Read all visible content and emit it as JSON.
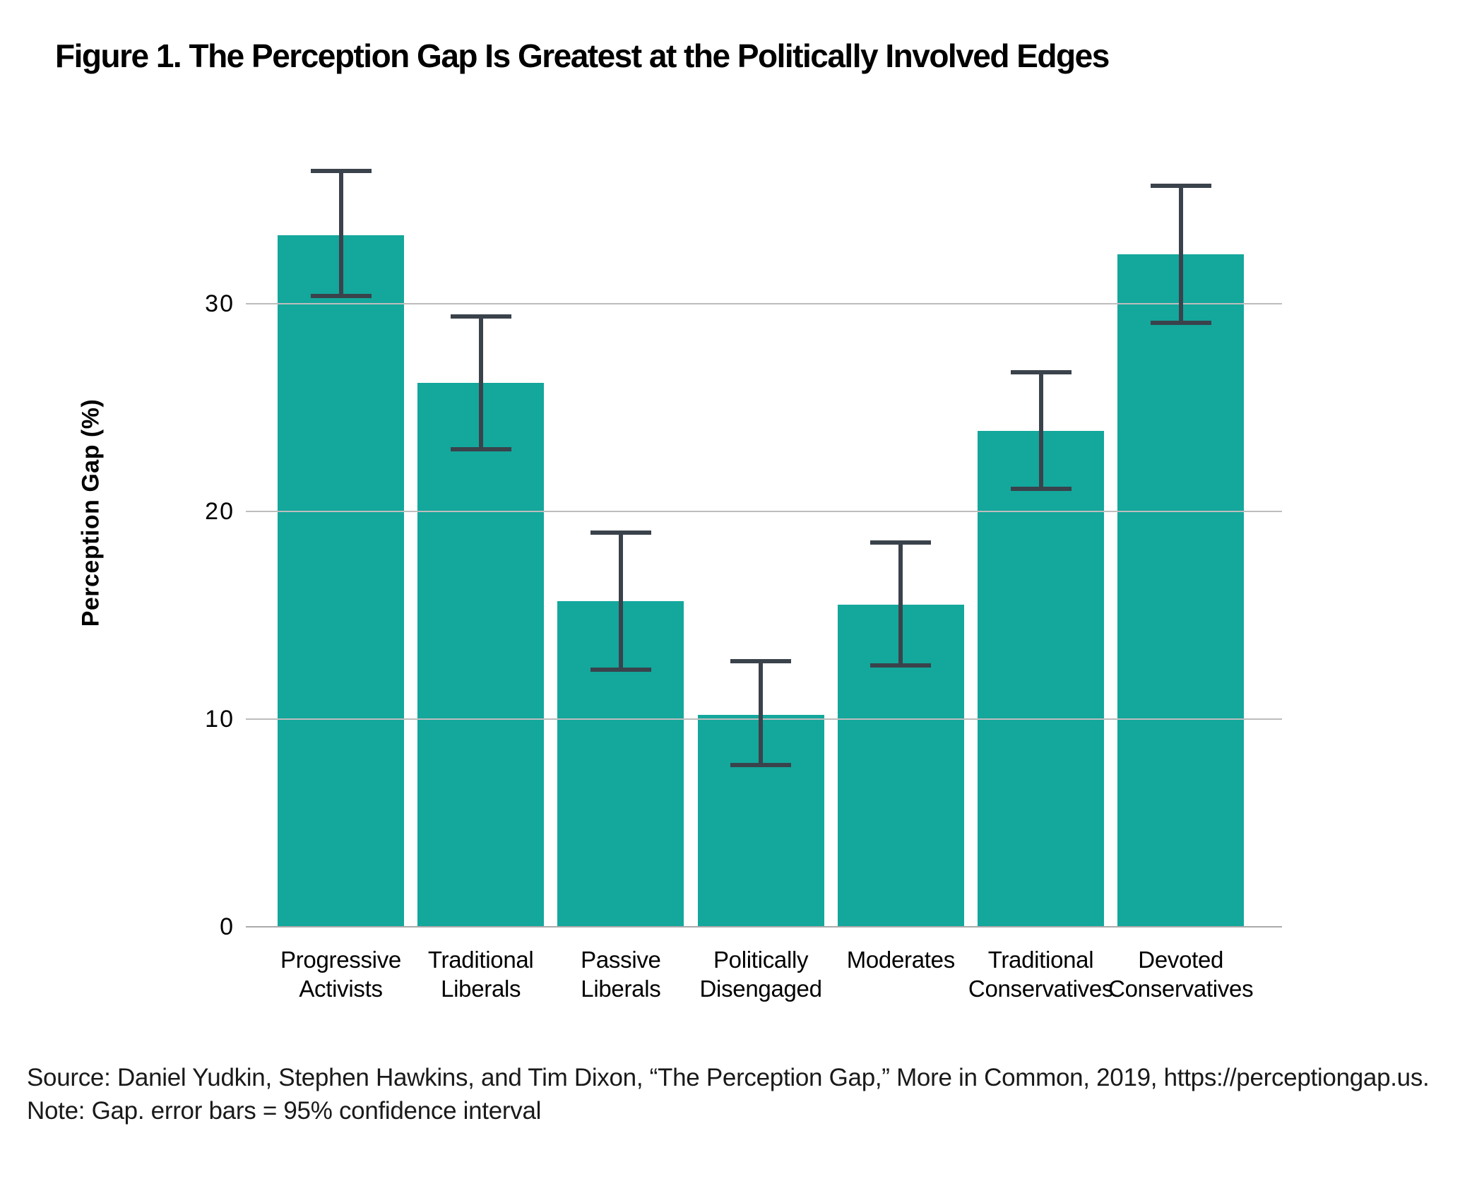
{
  "title": "Figure 1. The Perception Gap Is Greatest at the Politically Involved Edges",
  "footer": {
    "source": "Source: Daniel Yudkin, Stephen Hawkins, and Tim Dixon, “The Perception Gap,” More in Common, 2019, https://perceptiongap.us.",
    "note": "Note: Gap. error bars = 95% confidence interval"
  },
  "chart_data": {
    "type": "bar",
    "title": "Figure 1. The Perception Gap Is Greatest at the Politically Involved Edges",
    "xlabel": "",
    "ylabel": "Perception Gap (%)",
    "ylim": [
      0,
      38.5
    ],
    "yticks": [
      0,
      10,
      20,
      30
    ],
    "grid": true,
    "legend": "none",
    "categories": [
      "Progressive Activists",
      "Traditional Liberals",
      "Passive Liberals",
      "Politically Disengaged",
      "Moderates",
      "Traditional Conservatives",
      "Devoted Conservatives"
    ],
    "values": [
      33.3,
      26.2,
      15.7,
      10.2,
      15.5,
      23.9,
      32.4
    ],
    "error_low": [
      30.4,
      23.0,
      12.4,
      7.8,
      12.6,
      21.1,
      29.1
    ],
    "error_high": [
      36.4,
      29.4,
      19.0,
      12.8,
      18.5,
      26.7,
      35.7
    ],
    "error_note": "error bars = 95% confidence interval",
    "colors": {
      "bar": "#14A79C",
      "error_bar": "#3A424B",
      "gridline": "#BDBDBD",
      "axis_line": "#ABABAB",
      "text": "#000000"
    }
  }
}
